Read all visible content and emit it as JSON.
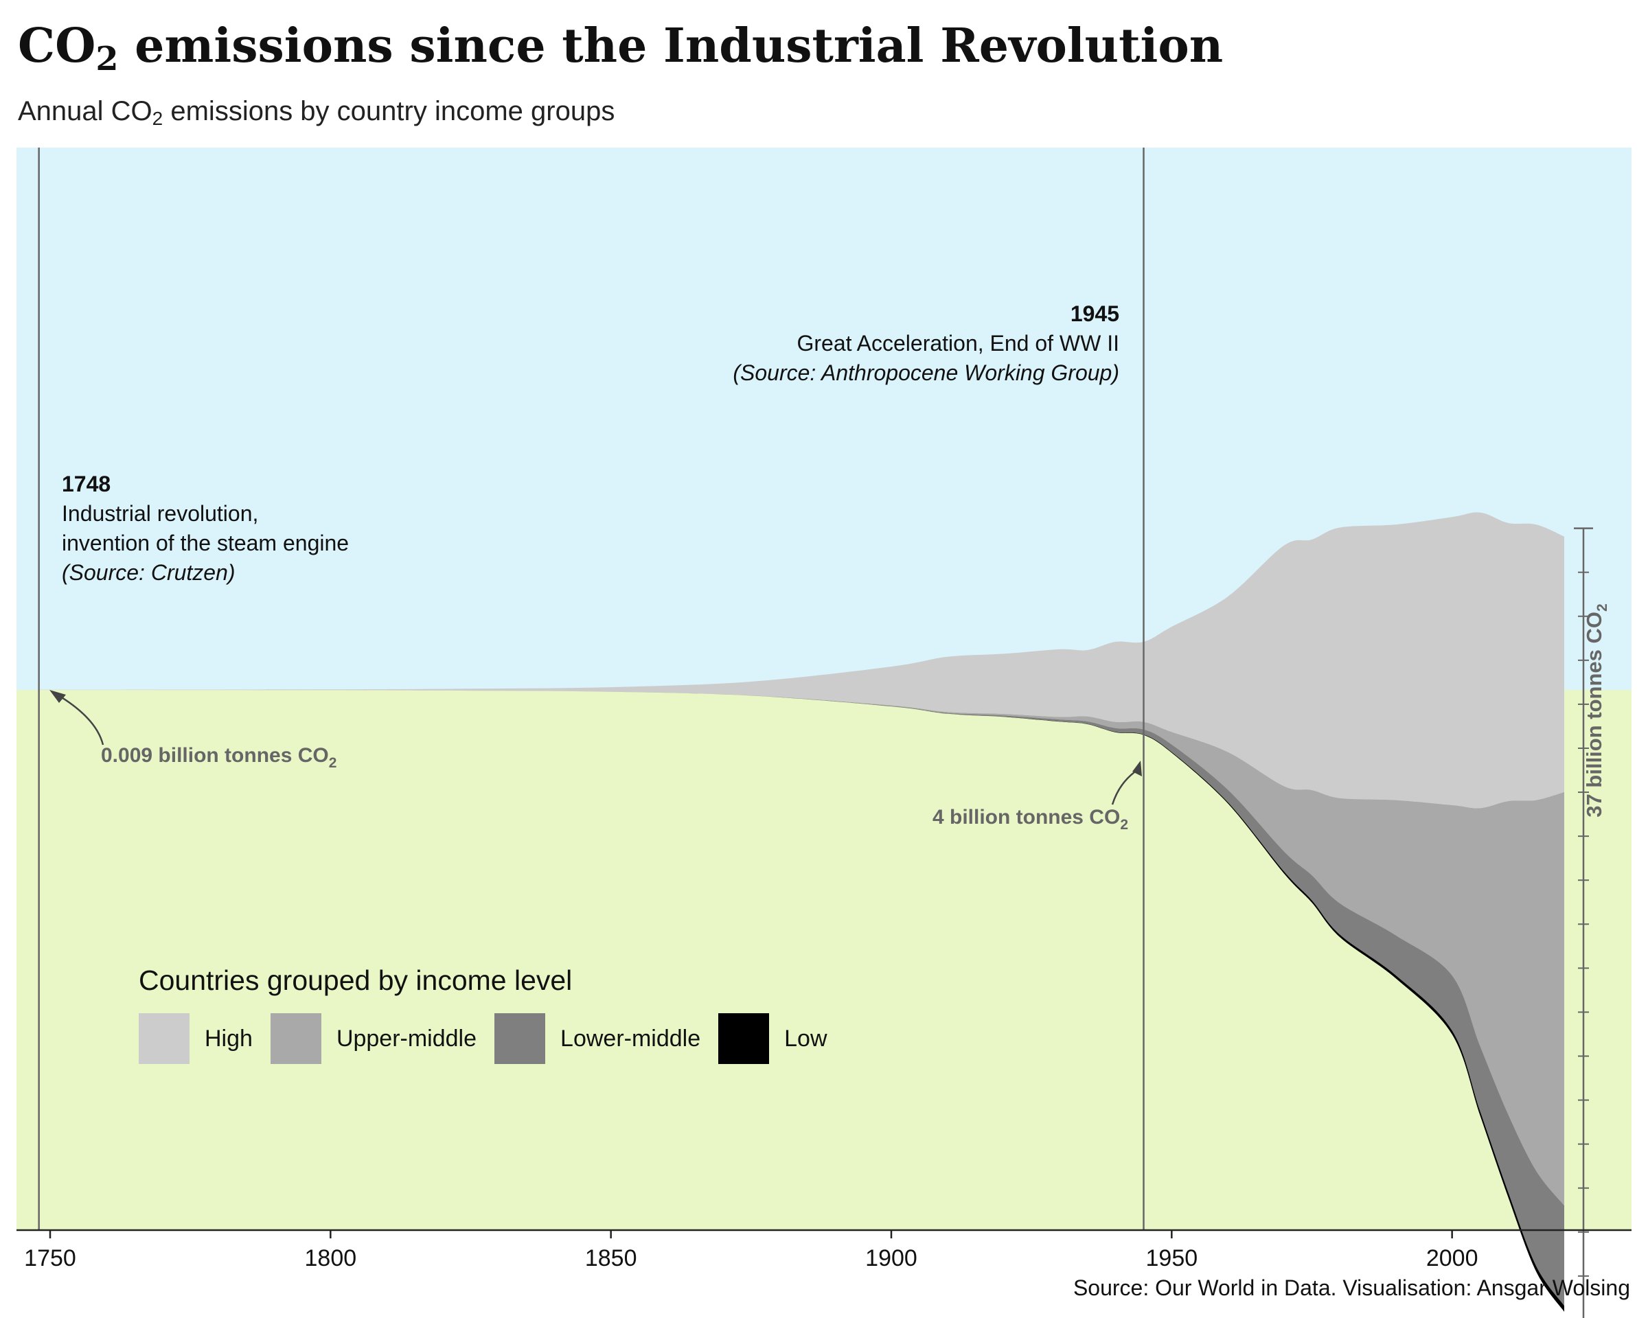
{
  "title_main": "CO",
  "title_sub": "2",
  "title_rest": " emissions since the Industrial Revolution",
  "subtitle_main": "Annual CO",
  "subtitle_sub": "2",
  "subtitle_rest": " emissions by country income groups",
  "source": "Source: Our World in Data. Visualisation: Ansgar Wolsing",
  "colors": {
    "sky": "#dbf3fa",
    "ground": "#e9f7c6",
    "high": "#cccccc",
    "upper_middle": "#a9a9a9",
    "lower_middle": "#7f7f7f",
    "low": "#000000"
  },
  "annotations": {
    "a1748": {
      "year": "1748",
      "line1": "Industrial revolution,",
      "line2": "invention of the steam engine",
      "source": "(Source: Crutzen)",
      "value_main": "0.009 billion tonnes CO",
      "value_sub": "2"
    },
    "a1945": {
      "year": "1945",
      "line1": "Great Acceleration, End of WW II",
      "source": "(Source: Anthropocene Working Group)",
      "value_main": "4 billion tonnes CO",
      "value_sub": "2"
    },
    "scale_main": "37 billion tonnes CO",
    "scale_sub": "2"
  },
  "legend": {
    "title": "Countries grouped by income level",
    "items": [
      {
        "label": "High",
        "color": "#cccccc"
      },
      {
        "label": "Upper-middle",
        "color": "#a9a9a9"
      },
      {
        "label": "Lower-middle",
        "color": "#7f7f7f"
      },
      {
        "label": "Low",
        "color": "#000000"
      }
    ]
  },
  "chart_data": {
    "type": "area",
    "layout": "streamgraph",
    "xlim": [
      1744,
      2032
    ],
    "xticks": [
      "1750",
      "1800",
      "1850",
      "1900",
      "1950",
      "2000"
    ],
    "x": [
      1748,
      1800,
      1825,
      1850,
      1875,
      1900,
      1910,
      1920,
      1930,
      1935,
      1940,
      1945,
      1950,
      1960,
      1970,
      1975,
      1980,
      1990,
      2000,
      2005,
      2010,
      2015,
      2020
    ],
    "series": [
      {
        "name": "High",
        "values": [
          0.009,
          0.03,
          0.08,
          0.18,
          0.55,
          1.55,
          2.2,
          2.4,
          2.7,
          2.65,
          3.2,
          3.2,
          4.2,
          6.2,
          9.6,
          10.0,
          10.8,
          11.0,
          11.5,
          11.8,
          11.1,
          11.0,
          10.2
        ]
      },
      {
        "name": "Upper-middle",
        "values": [
          0,
          0,
          0,
          0.001,
          0.005,
          0.02,
          0.04,
          0.06,
          0.1,
          0.2,
          0.25,
          0.3,
          0.5,
          1.5,
          2.6,
          3.4,
          4.2,
          5.4,
          6.8,
          9.5,
          12.5,
          14.8,
          16.5
        ]
      },
      {
        "name": "Lower-middle",
        "values": [
          0,
          0,
          0,
          0.001,
          0.005,
          0.02,
          0.03,
          0.05,
          0.08,
          0.1,
          0.15,
          0.2,
          0.3,
          0.5,
          0.8,
          1.0,
          1.25,
          1.6,
          2.2,
          2.6,
          3.1,
          3.8,
          4.0
        ]
      },
      {
        "name": "Low",
        "values": [
          0,
          0,
          0,
          0,
          0,
          0.001,
          0.003,
          0.005,
          0.008,
          0.01,
          0.015,
          0.02,
          0.03,
          0.05,
          0.08,
          0.09,
          0.1,
          0.12,
          0.15,
          0.17,
          0.2,
          0.22,
          0.24
        ]
      }
    ],
    "highlight_years": [
      1748,
      1945
    ]
  }
}
